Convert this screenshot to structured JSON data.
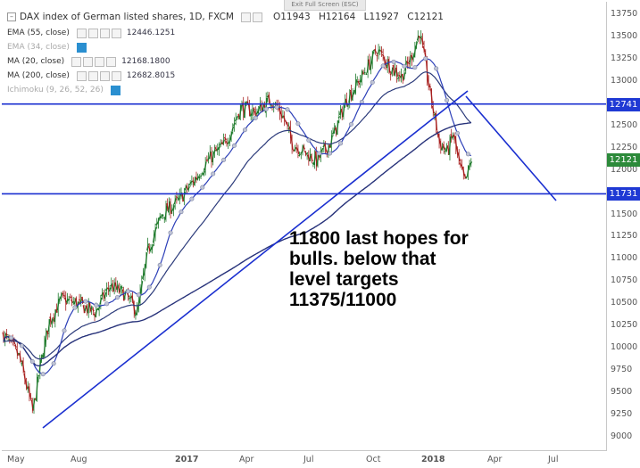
{
  "header": {
    "title": "DAX index of German listed shares, 1D, FXCM",
    "exit_button": "Exit Full Screen (ESC)",
    "ohlc": {
      "open": "O11943",
      "high": "H12164",
      "low": "L11927",
      "close": "C12121"
    }
  },
  "indicators": [
    {
      "name": "EMA (55, close)",
      "value": "12446.1251",
      "hidden": false
    },
    {
      "name": "EMA (34, close)",
      "value": "",
      "hidden": true
    },
    {
      "name": "MA (20, close)",
      "value": "12168.1800",
      "hidden": false
    },
    {
      "name": "MA (200, close)",
      "value": "12682.8015",
      "hidden": false
    },
    {
      "name": "Ichimoku (9, 26, 52, 26)",
      "value": "",
      "hidden": true
    }
  ],
  "annotation": {
    "line1": "11800 last hopes for",
    "line2": "bulls. below that",
    "line3": "level targets",
    "line4": "11375/11000"
  },
  "price_tags": [
    {
      "label": "12741",
      "value": 12741,
      "color": "#1f39d4"
    },
    {
      "label": "12121",
      "value": 12121,
      "color": "#2c8a3a"
    },
    {
      "label": "11731",
      "value": 11731,
      "color": "#1f39d4"
    }
  ],
  "colors": {
    "line": "#1a2fd0",
    "bull": "#1e7a2b",
    "bear": "#a8201f",
    "ma": "#202a8a"
  },
  "chart_data": {
    "type": "candlestick",
    "title": "DAX index of German listed shares, 1D, FXCM",
    "x_ticks": [
      "May",
      "Aug",
      "2017",
      "Apr",
      "Jul",
      "Oct",
      "2018",
      "Apr",
      "Jul"
    ],
    "y_ticks": [
      13750,
      13500,
      13250,
      13000,
      12750,
      12500,
      12250,
      12000,
      11750,
      11500,
      11250,
      11000,
      10750,
      10500,
      10250,
      10000,
      9750,
      9500,
      9250,
      9000
    ],
    "ylim": [
      8950,
      13760
    ],
    "price_path": [
      [
        0,
        10150
      ],
      [
        6,
        10000
      ],
      [
        10,
        9900
      ],
      [
        16,
        9500
      ],
      [
        19,
        9280
      ],
      [
        24,
        9800
      ],
      [
        30,
        10300
      ],
      [
        38,
        10550
      ],
      [
        48,
        10500
      ],
      [
        60,
        10400
      ],
      [
        70,
        10700
      ],
      [
        80,
        10600
      ],
      [
        88,
        10400
      ],
      [
        95,
        11100
      ],
      [
        104,
        11500
      ],
      [
        115,
        11650
      ],
      [
        126,
        11900
      ],
      [
        134,
        12100
      ],
      [
        146,
        12300
      ],
      [
        156,
        12700
      ],
      [
        166,
        12650
      ],
      [
        176,
        12800
      ],
      [
        184,
        12600
      ],
      [
        190,
        12300
      ],
      [
        198,
        12200
      ],
      [
        206,
        12100
      ],
      [
        215,
        12300
      ],
      [
        226,
        12800
      ],
      [
        236,
        13050
      ],
      [
        246,
        13350
      ],
      [
        255,
        13150
      ],
      [
        262,
        13050
      ],
      [
        268,
        13250
      ],
      [
        274,
        13550
      ],
      [
        277,
        13250
      ],
      [
        282,
        12750
      ],
      [
        287,
        12300
      ],
      [
        292,
        12200
      ],
      [
        296,
        12400
      ],
      [
        300,
        12050
      ],
      [
        304,
        11850
      ],
      [
        308,
        12121
      ]
    ],
    "x_span": [
      0,
      324
    ]
  }
}
